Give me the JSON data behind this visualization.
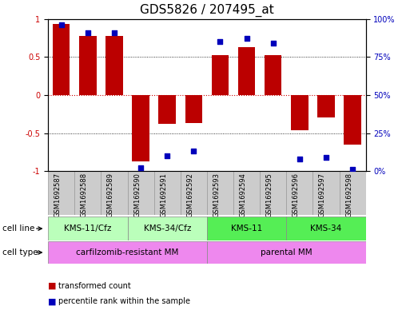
{
  "title": "GDS5826 / 207495_at",
  "samples": [
    "GSM1692587",
    "GSM1692588",
    "GSM1692589",
    "GSM1692590",
    "GSM1692591",
    "GSM1692592",
    "GSM1692593",
    "GSM1692594",
    "GSM1692595",
    "GSM1692596",
    "GSM1692597",
    "GSM1692598"
  ],
  "transformed_count": [
    0.93,
    0.78,
    0.77,
    -0.87,
    -0.38,
    -0.37,
    0.52,
    0.63,
    0.52,
    -0.46,
    -0.3,
    -0.65
  ],
  "percentile_rank": [
    96,
    91,
    91,
    2,
    10,
    13,
    85,
    87,
    84,
    8,
    9,
    1
  ],
  "cell_line_groups": [
    {
      "label": "KMS-11/Cfz",
      "start": 0,
      "end": 3,
      "color_light": "#BBFFBB",
      "color_dark": "#55DD55"
    },
    {
      "label": "KMS-34/Cfz",
      "start": 3,
      "end": 6,
      "color_light": "#BBFFBB",
      "color_dark": "#55DD55"
    },
    {
      "label": "KMS-11",
      "start": 6,
      "end": 9,
      "color_light": "#55EE55",
      "color_dark": "#33CC33"
    },
    {
      "label": "KMS-34",
      "start": 9,
      "end": 12,
      "color_light": "#55EE55",
      "color_dark": "#33CC33"
    }
  ],
  "cell_type_groups": [
    {
      "label": "carfilzomib-resistant MM",
      "start": 0,
      "end": 6,
      "color": "#EE88EE"
    },
    {
      "label": "parental MM",
      "start": 6,
      "end": 12,
      "color": "#EE88EE"
    }
  ],
  "bar_color": "#BB0000",
  "dot_color": "#0000BB",
  "ylim_left": [
    -1.0,
    1.0
  ],
  "ylim_right": [
    0,
    100
  ],
  "yticks_left": [
    -1.0,
    -0.5,
    0.0,
    0.5,
    1.0
  ],
  "yticks_left_labels": [
    "-1",
    "-0.5",
    "0",
    "0.5",
    "1"
  ],
  "yticks_right": [
    0,
    25,
    50,
    75,
    100
  ],
  "yticklabels_right": [
    "0%",
    "25%",
    "50%",
    "75%",
    "100%"
  ],
  "hgrid_lines": [
    -0.5,
    0.5
  ],
  "zero_line_color": "#CC0000",
  "sample_bg_color": "#CCCCCC",
  "sample_border_color": "#999999",
  "title_fontsize": 11,
  "label_fontsize": 7.5,
  "tick_fontsize": 7,
  "legend_fontsize": 7,
  "sample_label_fontsize": 6,
  "row_label_fontsize": 7.5
}
